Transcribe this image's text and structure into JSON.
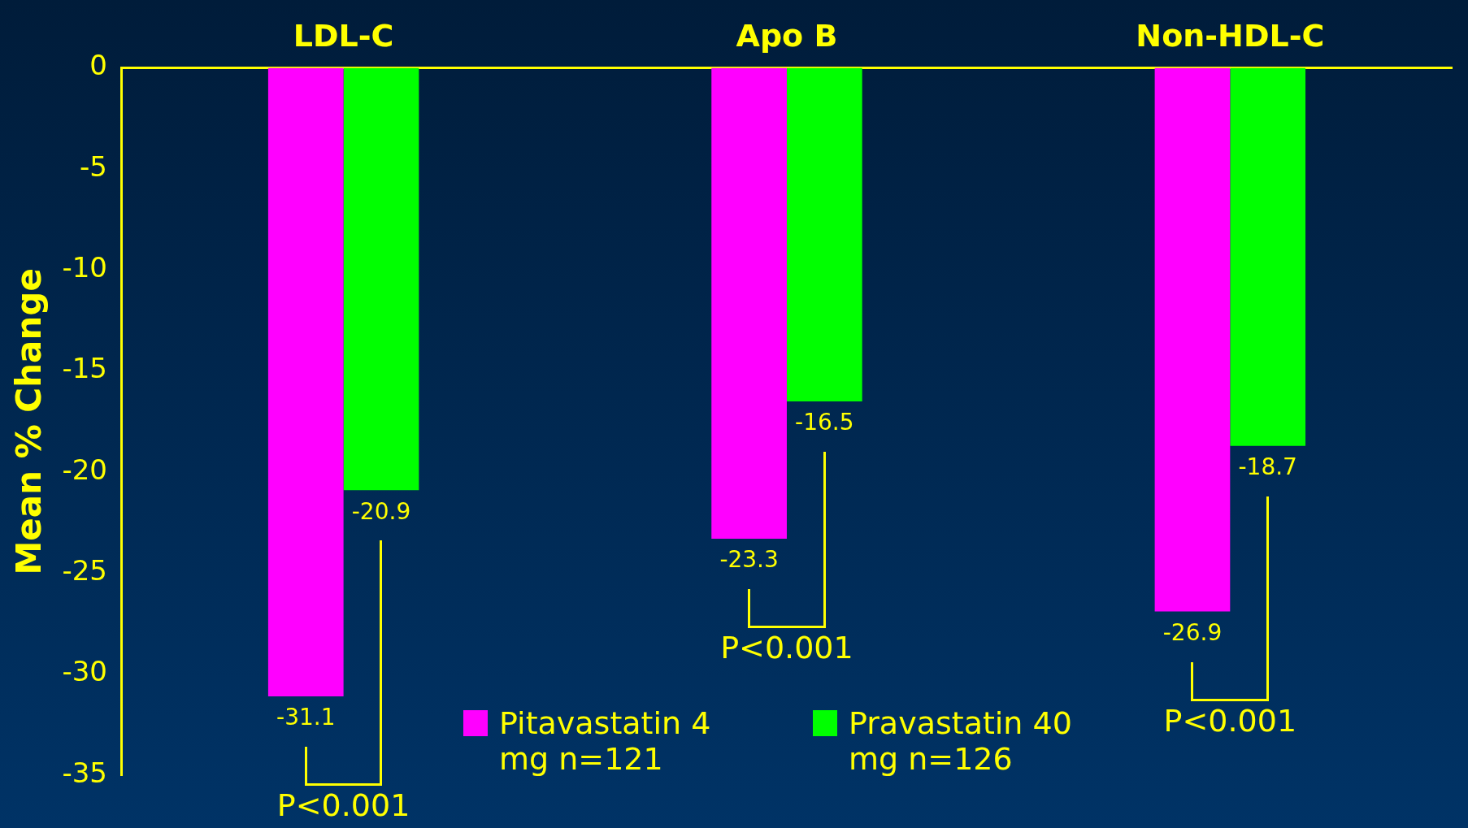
{
  "chart_data": {
    "type": "bar",
    "ylabel": "Mean % Change",
    "categories": [
      "LDL-C",
      "Apo B",
      "Non-HDL-C"
    ],
    "series": [
      {
        "name": "Pitavastatin 4 mg n=121",
        "color": "#ff00ff",
        "values": [
          -31.1,
          -23.3,
          -26.9
        ]
      },
      {
        "name": "Pravastatin 40 mg n=126",
        "color": "#00ff00",
        "values": [
          -20.9,
          -16.5,
          -18.7
        ]
      }
    ],
    "ylim": [
      -35,
      0
    ],
    "yticks": [
      0,
      -5,
      -10,
      -15,
      -20,
      -25,
      -30,
      -35
    ],
    "grid": false,
    "data_labels": true,
    "legend": "bottom",
    "annotations": [
      "P<0.001",
      "P<0.001",
      "P<0.001"
    ]
  }
}
